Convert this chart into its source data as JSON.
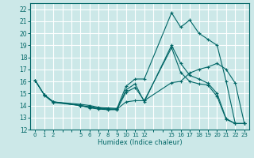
{
  "title": "",
  "xlabel": "Humidex (Indice chaleur)",
  "ylabel": "",
  "bg_color": "#cce8e8",
  "grid_color": "#ffffff",
  "line_color": "#006666",
  "x_ticks": [
    0,
    1,
    2,
    5,
    6,
    7,
    8,
    9,
    10,
    11,
    12,
    15,
    16,
    17,
    18,
    19,
    20,
    21,
    22,
    23
  ],
  "x_tick_labels": [
    "0",
    "1",
    "2",
    "5",
    "6",
    "7",
    "8",
    "9",
    "101112",
    "",
    "",
    "151617181920212223",
    "",
    "",
    "",
    "",
    "",
    "",
    "",
    ""
  ],
  "xlim": [
    -0.5,
    23.5
  ],
  "ylim": [
    12,
    22.5
  ],
  "y_ticks": [
    12,
    13,
    14,
    15,
    16,
    17,
    18,
    19,
    20,
    21,
    22
  ],
  "lines": [
    {
      "x": [
        0,
        1,
        2,
        5,
        6,
        7,
        8,
        9,
        10,
        11,
        12,
        15,
        16,
        17,
        18,
        19,
        20,
        21,
        22,
        23
      ],
      "y": [
        16.1,
        14.9,
        14.3,
        14.0,
        13.8,
        13.7,
        13.65,
        13.65,
        15.3,
        15.8,
        14.3,
        19.0,
        17.5,
        16.5,
        16.2,
        15.85,
        15.0,
        12.9,
        12.5,
        12.5
      ]
    },
    {
      "x": [
        0,
        1,
        2,
        5,
        6,
        7,
        8,
        9,
        10,
        11,
        12,
        15,
        16,
        17,
        18,
        19,
        20,
        21,
        22,
        23
      ],
      "y": [
        16.1,
        14.9,
        14.3,
        14.0,
        13.9,
        13.8,
        13.7,
        13.7,
        14.3,
        14.4,
        14.4,
        15.9,
        16.0,
        16.7,
        17.0,
        17.2,
        17.5,
        17.0,
        15.85,
        12.5
      ]
    },
    {
      "x": [
        0,
        1,
        2,
        5,
        6,
        7,
        8,
        9,
        10,
        11,
        12,
        15,
        16,
        17,
        18,
        19,
        20,
        21,
        22,
        23
      ],
      "y": [
        16.1,
        14.9,
        14.3,
        14.1,
        14.0,
        13.85,
        13.8,
        13.75,
        15.6,
        16.2,
        16.2,
        21.7,
        20.5,
        21.1,
        20.0,
        19.5,
        19.0,
        16.0,
        12.5,
        12.5
      ]
    },
    {
      "x": [
        1,
        2,
        5,
        6,
        7,
        8,
        9,
        10,
        11,
        12,
        15,
        16,
        17,
        18,
        19,
        20,
        21,
        22,
        23
      ],
      "y": [
        14.85,
        14.25,
        14.0,
        13.85,
        13.75,
        13.7,
        13.7,
        15.1,
        15.5,
        14.4,
        18.8,
        16.75,
        16.0,
        15.8,
        15.7,
        14.75,
        12.85,
        12.5,
        12.5
      ]
    }
  ]
}
